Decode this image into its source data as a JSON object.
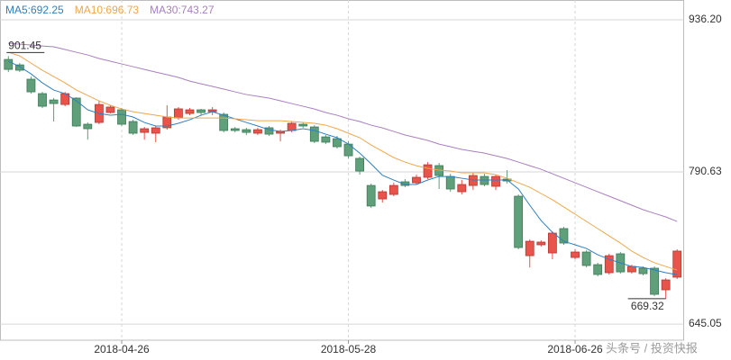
{
  "chart_data": {
    "type": "candlestick",
    "categories": [
      null,
      null,
      null,
      null,
      null,
      null,
      null,
      null,
      null,
      null,
      "2018-04-26",
      null,
      null,
      null,
      null,
      null,
      null,
      null,
      null,
      null,
      null,
      null,
      null,
      null,
      null,
      null,
      null,
      null,
      null,
      null,
      "2018-05-28",
      null,
      null,
      null,
      null,
      null,
      null,
      null,
      null,
      null,
      null,
      null,
      null,
      null,
      null,
      null,
      null,
      null,
      null,
      null,
      "2018-06-26",
      null,
      null,
      null,
      null,
      null,
      null,
      null,
      null,
      null
    ],
    "ohlc": {
      "open": [
        898.3,
        893.1,
        879.4,
        865.6,
        859.5,
        855.2,
        861.3,
        836.3,
        838.0,
        847.5,
        850.1,
        838.9,
        828.5,
        827.7,
        832.9,
        842.3,
        846.6,
        850.1,
        848.3,
        845.8,
        832.0,
        831.1,
        827.7,
        832.9,
        827.7,
        830.3,
        836.3,
        833.7,
        824.2,
        822.5,
        817.3,
        803.6,
        777.7,
        764.8,
        769.1,
        781.2,
        780.3,
        785.5,
        796.7,
        786.3,
        771.7,
        777.7,
        786.3,
        776.9,
        783.8,
        767.4,
        710.5,
        720.9,
        713.1,
        736.4,
        708.8,
        714.0,
        701.9,
        694.2,
        712.3,
        695.0,
        698.5,
        698.5,
        677.8,
        689.9
      ],
      "high": [
        901.45,
        894.9,
        881.9,
        867.3,
        861.3,
        867.3,
        862.1,
        838.0,
        858.7,
        854.4,
        851.8,
        840.6,
        833.7,
        834.6,
        854.4,
        852.7,
        851.8,
        851.0,
        852.7,
        847.5,
        833.7,
        832.9,
        832.9,
        834.6,
        831.1,
        838.9,
        838.0,
        835.4,
        826.0,
        825.1,
        819.9,
        805.3,
        779.5,
        773.4,
        780.3,
        783.8,
        788.0,
        800.1,
        799.3,
        788.9,
        783.0,
        789.8,
        788.9,
        788.0,
        792.4,
        769.1,
        726.0,
        725.2,
        733.8,
        738.1,
        716.6,
        715.7,
        703.7,
        712.3,
        714.0,
        701.9,
        700.2,
        700.2,
        689.0,
        716.6
      ],
      "low": [
        886.2,
        886.2,
        865.6,
        851.8,
        838.9,
        853.5,
        833.7,
        821.6,
        836.3,
        846.6,
        834.6,
        826.0,
        821.6,
        819.1,
        831.1,
        840.6,
        844.9,
        844.9,
        844.9,
        828.5,
        828.5,
        826.0,
        826.0,
        825.1,
        819.9,
        828.5,
        832.9,
        818.2,
        817.3,
        813.0,
        803.6,
        788.0,
        756.2,
        761.4,
        767.4,
        776.0,
        778.6,
        783.8,
        774.3,
        771.7,
        769.1,
        773.4,
        776.9,
        773.4,
        779.5,
        716.6,
        699.3,
        719.2,
        707.1,
        720.9,
        707.1,
        699.3,
        690.7,
        692.5,
        693.3,
        693.3,
        691.6,
        671.8,
        669.32,
        688.2
      ],
      "close": [
        888.8,
        888.0,
        867.3,
        853.5,
        856.1,
        865.6,
        834.6,
        832.0,
        855.2,
        852.7,
        836.3,
        827.7,
        832.0,
        832.9,
        843.2,
        851.0,
        850.1,
        847.5,
        850.1,
        830.3,
        830.3,
        828.5,
        831.1,
        826.8,
        829.4,
        837.2,
        834.6,
        819.9,
        819.1,
        814.8,
        806.1,
        791.5,
        758.0,
        771.7,
        777.7,
        777.7,
        785.5,
        797.5,
        787.2,
        774.3,
        778.6,
        787.2,
        778.6,
        786.3,
        782.0,
        718.3,
        724.3,
        723.5,
        732.1,
        722.6,
        714.0,
        701.1,
        692.5,
        710.5,
        695.0,
        700.2,
        693.3,
        673.5,
        687.3,
        714.9
      ]
    },
    "up_color": "#e8534b",
    "down_color": "#5f9f7a",
    "series": [
      {
        "name": "MA5:692.25",
        "color": "#2f7fc1",
        "values": [
          896.6,
          891.4,
          884.5,
          875.9,
          869.0,
          865.6,
          858.7,
          850.1,
          846.6,
          844.9,
          845.8,
          843.2,
          838.0,
          834.6,
          834.6,
          837.2,
          840.6,
          844.9,
          848.3,
          844.9,
          841.5,
          838.0,
          834.6,
          831.1,
          829.4,
          830.3,
          832.0,
          830.3,
          826.8,
          823.4,
          817.3,
          808.7,
          798.4,
          787.5,
          782.9,
          778.6,
          778.6,
          782.9,
          786.3,
          786.3,
          784.6,
          782.9,
          782.9,
          782.9,
          782.9,
          774.3,
          758.8,
          744.1,
          732.9,
          724.3,
          720.9,
          717.4,
          711.4,
          707.1,
          703.6,
          700.2,
          699.3,
          696.8,
          694.2,
          692.25
        ]
      },
      {
        "name": "MA10:696.73",
        "color": "#f0a64a",
        "values": [
          905.2,
          901.7,
          894.8,
          888.0,
          881.9,
          875.9,
          869.0,
          863.8,
          858.7,
          854.4,
          850.9,
          848.3,
          846.6,
          844.9,
          843.2,
          842.3,
          842.3,
          842.3,
          842.3,
          842.3,
          841.5,
          840.6,
          839.7,
          839.7,
          839.7,
          838.9,
          838.0,
          837.2,
          835.4,
          832.0,
          827.7,
          823.4,
          816.5,
          810.4,
          804.4,
          800.1,
          796.6,
          794.1,
          792.4,
          791.5,
          789.8,
          789.8,
          789.8,
          788.0,
          784.6,
          780.3,
          776.0,
          770.0,
          764.0,
          757.1,
          750.2,
          743.3,
          736.4,
          729.5,
          722.6,
          714.9,
          708.8,
          703.7,
          700.2,
          696.73
        ]
      },
      {
        "name": "MA30:743.27",
        "color": "#a97fc0",
        "values": [
          913.8,
          912.9,
          912.1,
          911.2,
          910.4,
          907.8,
          905.2,
          902.6,
          899.2,
          896.6,
          894.0,
          891.4,
          888.8,
          886.2,
          883.7,
          881.1,
          877.6,
          875.0,
          872.5,
          869.9,
          867.3,
          864.7,
          863.0,
          861.3,
          858.7,
          856.1,
          853.5,
          850.9,
          847.5,
          844.9,
          841.5,
          838.9,
          835.4,
          832.8,
          829.4,
          826.0,
          823.4,
          820.8,
          817.3,
          814.8,
          812.2,
          810.4,
          808.7,
          806.1,
          803.5,
          800.1,
          796.6,
          793.2,
          788.9,
          784.6,
          780.3,
          776.0,
          771.7,
          767.4,
          763.1,
          758.8,
          754.5,
          751.0,
          747.6,
          743.27
        ]
      }
    ],
    "ylim": [
      629.6,
      955.2
    ],
    "yticks": [
      {
        "value": 645.05,
        "label": "645.05"
      },
      {
        "value": 790.63,
        "label": "790.63"
      },
      {
        "value": 936.2,
        "label": "936.20"
      }
    ],
    "grid": true,
    "watermark": "头条号 / 投资快报"
  }
}
